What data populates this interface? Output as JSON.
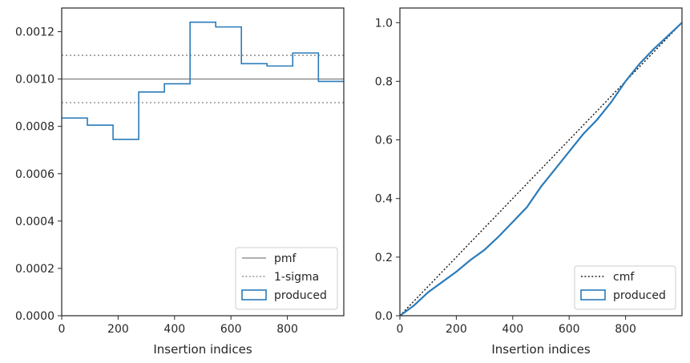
{
  "chart_data": [
    {
      "type": "line",
      "xlabel": "Insertion indices",
      "ylabel": "",
      "xlim": [
        0,
        1000
      ],
      "ylim": [
        0,
        0.0013
      ],
      "xticks": [
        "0",
        "200",
        "400",
        "600",
        "800"
      ],
      "yticks": [
        "0.0000",
        "0.0002",
        "0.0004",
        "0.0006",
        "0.0008",
        "0.0010",
        "0.0012"
      ],
      "grid": false,
      "legend_position": "lower-right",
      "series": [
        {
          "name": "pmf",
          "style": "solid",
          "color": "#808080",
          "x": [
            0,
            1000
          ],
          "y": [
            0.001,
            0.001
          ]
        },
        {
          "name": "1-sigma",
          "style": "dotted",
          "color": "#808080",
          "x": [
            0,
            1000
          ],
          "y": [
            0.0011,
            0.0011
          ],
          "y_lower": [
            0.0009,
            0.0009
          ]
        },
        {
          "name": "produced",
          "style": "step",
          "color": "#2b7bb9",
          "bin_edges": [
            0,
            91,
            182,
            273,
            364,
            455,
            546,
            637,
            728,
            819,
            910,
            1000
          ],
          "values": [
            0.000835,
            0.000805,
            0.000745,
            0.000945,
            0.00098,
            0.00124,
            0.00122,
            0.001065,
            0.001055,
            0.00111,
            0.00099
          ]
        }
      ]
    },
    {
      "type": "line",
      "xlabel": "Insertion indices",
      "ylabel": "",
      "xlim": [
        0,
        1000
      ],
      "ylim": [
        0,
        1.05
      ],
      "xticks": [
        "0",
        "200",
        "400",
        "600",
        "800"
      ],
      "yticks": [
        "0.0",
        "0.2",
        "0.4",
        "0.6",
        "0.8",
        "1.0"
      ],
      "grid": false,
      "legend_position": "lower-right",
      "series": [
        {
          "name": "cmf",
          "style": "dotted",
          "color": "#000000",
          "x": [
            0,
            1000
          ],
          "y": [
            0,
            1
          ]
        },
        {
          "name": "produced",
          "style": "solid",
          "color": "#2b7bb9",
          "x": [
            0,
            50,
            100,
            150,
            200,
            250,
            300,
            350,
            400,
            450,
            500,
            550,
            600,
            650,
            700,
            750,
            800,
            850,
            900,
            950,
            1000
          ],
          "y": [
            0,
            0.035,
            0.08,
            0.115,
            0.15,
            0.19,
            0.225,
            0.27,
            0.32,
            0.37,
            0.44,
            0.5,
            0.56,
            0.62,
            0.67,
            0.73,
            0.8,
            0.86,
            0.91,
            0.955,
            1.0
          ]
        }
      ]
    }
  ]
}
